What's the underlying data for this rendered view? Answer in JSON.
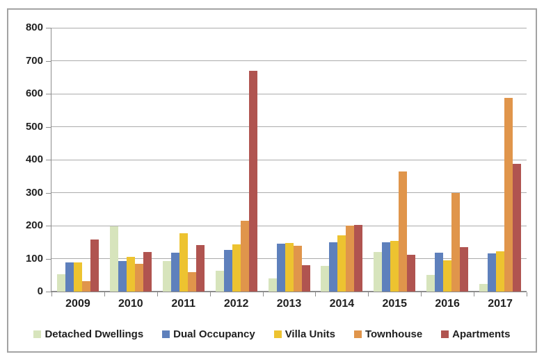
{
  "chart_data": {
    "type": "bar",
    "title": "",
    "xlabel": "",
    "ylabel": "",
    "categories": [
      "2009",
      "2010",
      "2011",
      "2012",
      "2013",
      "2014",
      "2015",
      "2016",
      "2017"
    ],
    "series": [
      {
        "name": "Detached Dwellings",
        "color": "#D7E4BC",
        "values": [
          52,
          197,
          92,
          63,
          40,
          78,
          120,
          50,
          23
        ]
      },
      {
        "name": "Dual Occupancy",
        "color": "#5E80BC",
        "values": [
          88,
          93,
          118,
          127,
          145,
          150,
          150,
          118,
          115
        ]
      },
      {
        "name": "Villa Units",
        "color": "#EDC330",
        "values": [
          88,
          105,
          176,
          143,
          147,
          170,
          153,
          95,
          122
        ]
      },
      {
        "name": "Townhouse",
        "color": "#E0954B",
        "values": [
          31,
          85,
          58,
          215,
          140,
          200,
          365,
          300,
          587
        ]
      },
      {
        "name": "Apartments",
        "color": "#B05450",
        "values": [
          158,
          120,
          141,
          670,
          80,
          202,
          111,
          135,
          388
        ]
      }
    ],
    "ylim": [
      0,
      800
    ],
    "y_ticks": [
      0,
      100,
      200,
      300,
      400,
      500,
      600,
      700,
      800
    ],
    "grid": true,
    "legend_position": "bottom"
  },
  "colors": {
    "gridline": "#ABABAB",
    "axis": "#8C8C8C",
    "frame_border": "#A3A3A3",
    "label_text": "#1F1F1F",
    "background": "#FFFFFF"
  }
}
